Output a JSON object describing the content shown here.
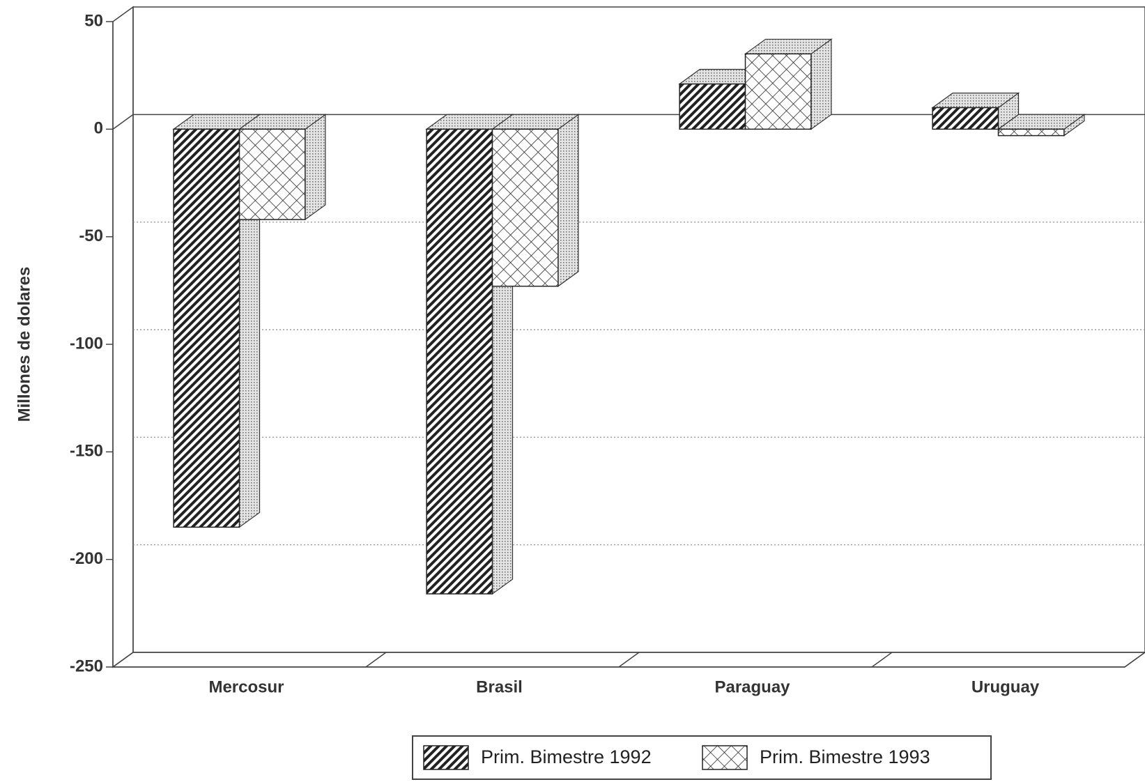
{
  "chart_data": {
    "type": "bar3d",
    "y_axis_label": "Millones de dolares",
    "categories": [
      "Mercosur",
      "Brasil",
      "Paraguay",
      "Uruguay"
    ],
    "series": [
      {
        "name": "Prim. Bimestre 1992",
        "color": "#222222",
        "values": [
          -185,
          -216,
          21,
          10
        ]
      },
      {
        "name": "Prim. Bimestre 1993",
        "color": "#222222",
        "values": [
          -42,
          -73,
          35,
          -3
        ]
      }
    ],
    "ylim": [
      -250,
      50
    ],
    "yticks": [
      -250,
      -200,
      -150,
      -100,
      -50,
      0,
      50
    ],
    "grid": true
  }
}
